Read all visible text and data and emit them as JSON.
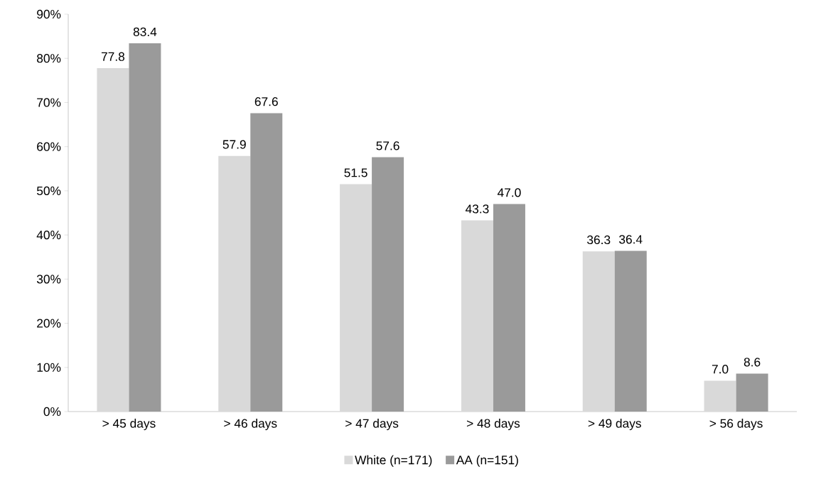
{
  "chart_data": {
    "type": "bar",
    "categories": [
      "> 45 days",
      "> 46 days",
      "> 47 days",
      "> 48 days",
      "> 49 days",
      "> 56 days"
    ],
    "series": [
      {
        "name": "White (n=171)",
        "color": "#d9d9d9",
        "values": [
          77.8,
          57.9,
          51.5,
          43.3,
          36.3,
          7.0
        ],
        "value_labels": [
          "77.8",
          "57.9",
          "51.5",
          "43.3",
          "36.3",
          "7.0"
        ]
      },
      {
        "name": "AA (n=151)",
        "color": "#9a9a9a",
        "values": [
          83.4,
          67.6,
          57.6,
          47.0,
          36.4,
          8.6
        ],
        "value_labels": [
          "83.4",
          "67.6",
          "57.6",
          "47.0",
          "36.4",
          "8.6"
        ]
      }
    ],
    "ylim": [
      0,
      90
    ],
    "yticks": [
      {
        "value": 0,
        "label": "0%"
      },
      {
        "value": 10,
        "label": "10%"
      },
      {
        "value": 20,
        "label": "20%"
      },
      {
        "value": 30,
        "label": "30%"
      },
      {
        "value": 40,
        "label": "40%"
      },
      {
        "value": 50,
        "label": "50%"
      },
      {
        "value": 60,
        "label": "60%"
      },
      {
        "value": 70,
        "label": "70%"
      },
      {
        "value": 80,
        "label": "80%"
      },
      {
        "value": 90,
        "label": "90%"
      }
    ],
    "grid": false,
    "legend": "bottom"
  }
}
